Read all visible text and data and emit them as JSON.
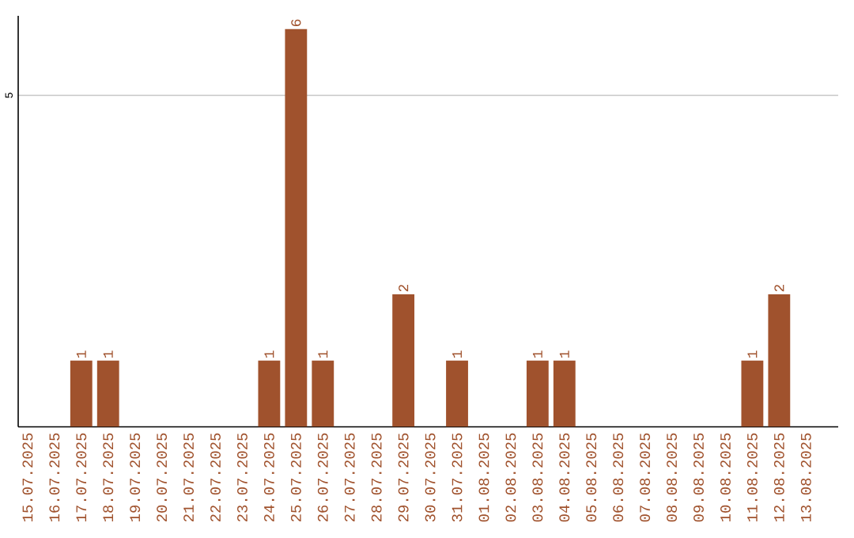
{
  "chart_data": {
    "type": "bar",
    "categories": [
      "15.07.2025",
      "16.07.2025",
      "17.07.2025",
      "18.07.2025",
      "19.07.2025",
      "20.07.2025",
      "21.07.2025",
      "22.07.2025",
      "23.07.2025",
      "24.07.2025",
      "25.07.2025",
      "26.07.2025",
      "27.07.2025",
      "28.07.2025",
      "29.07.2025",
      "30.07.2025",
      "31.07.2025",
      "01.08.2025",
      "02.08.2025",
      "03.08.2025",
      "04.08.2025",
      "05.08.2025",
      "06.08.2025",
      "07.08.2025",
      "08.08.2025",
      "09.08.2025",
      "10.08.2025",
      "11.08.2025",
      "12.08.2025",
      "13.08.2025"
    ],
    "values": [
      0,
      0,
      1,
      1,
      0,
      0,
      0,
      0,
      0,
      1,
      6,
      1,
      0,
      0,
      2,
      0,
      1,
      0,
      0,
      1,
      1,
      0,
      0,
      0,
      0,
      0,
      0,
      1,
      2,
      0
    ],
    "value_labels": [
      null,
      null,
      "1",
      "1",
      null,
      null,
      null,
      null,
      null,
      "1",
      "6",
      "1",
      null,
      null,
      "2",
      null,
      "1",
      null,
      null,
      "1",
      "1",
      null,
      null,
      null,
      null,
      null,
      null,
      "1",
      "2",
      null
    ],
    "color": "#a0522d",
    "ylim": [
      0,
      6.2
    ],
    "yticks": [
      5
    ],
    "grid": "y"
  }
}
